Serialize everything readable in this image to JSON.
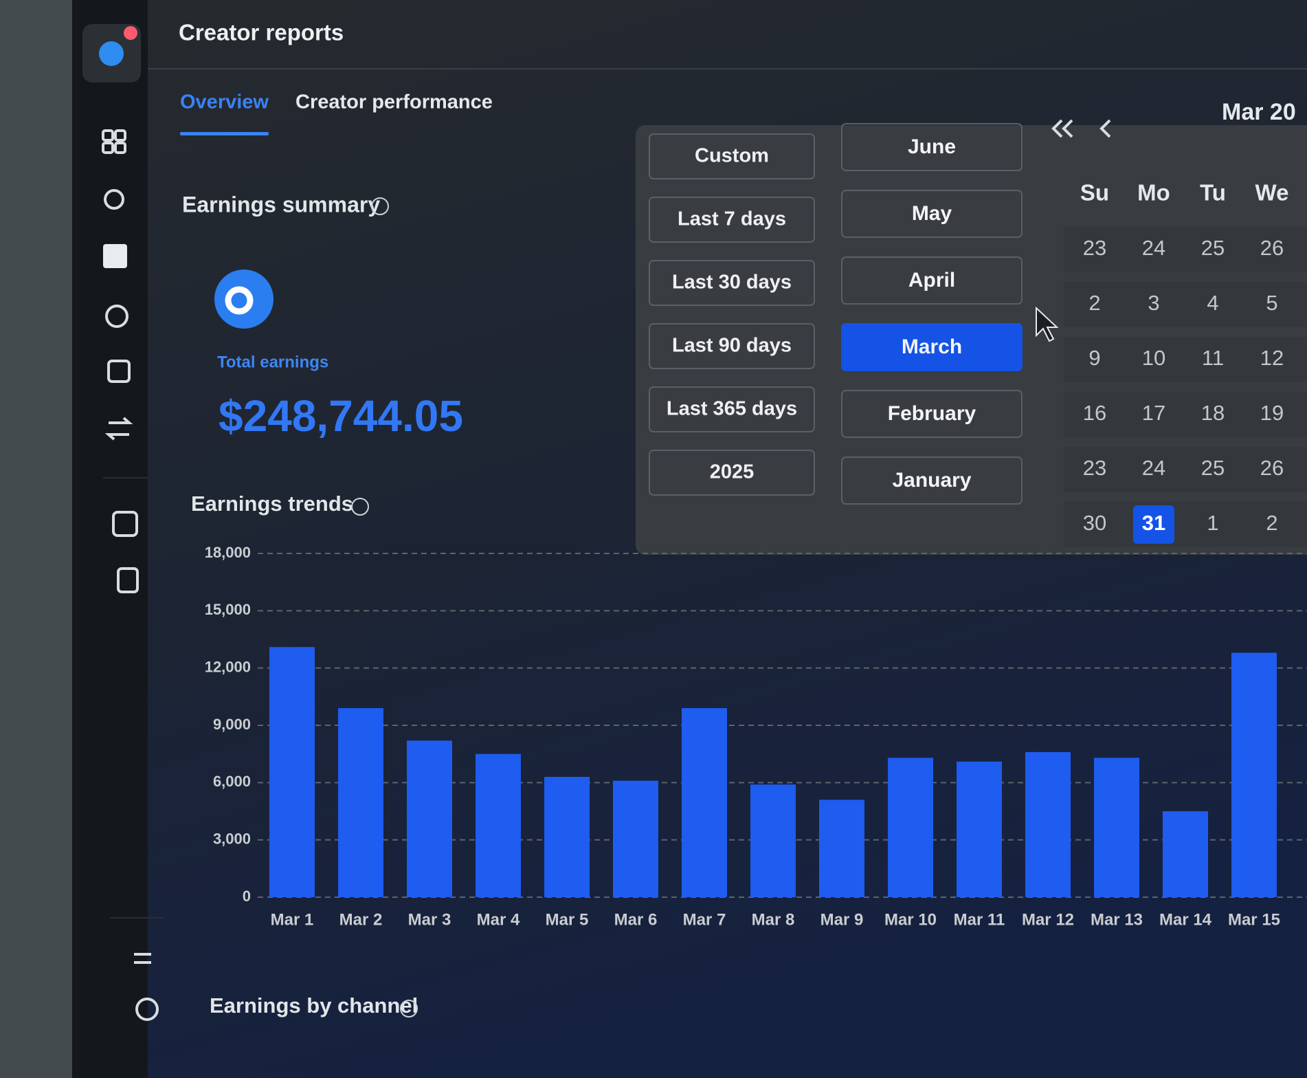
{
  "header": {
    "title": "Creator reports"
  },
  "tabs": [
    "Overview",
    "Creator performance"
  ],
  "active_tab": 0,
  "summary": {
    "title": "Earnings summary",
    "label": "Total earnings",
    "value": "$248,744.05"
  },
  "date_picker": {
    "presets": [
      "Custom",
      "Last 7 days",
      "Last 30 days",
      "Last 90 days",
      "Last 365 days",
      "2025"
    ],
    "months": [
      "June",
      "May",
      "April",
      "March",
      "February",
      "January"
    ],
    "selected_month": 3,
    "calendar": {
      "title": "Mar 20",
      "weekdays": [
        "Su",
        "Mo",
        "Tu",
        "We"
      ],
      "weeks": [
        [
          23,
          24,
          25,
          26
        ],
        [
          2,
          3,
          4,
          5
        ],
        [
          9,
          10,
          11,
          12
        ],
        [
          16,
          17,
          18,
          19
        ],
        [
          23,
          24,
          25,
          26
        ],
        [
          30,
          31,
          1,
          2
        ]
      ],
      "selected": [
        5,
        1
      ]
    }
  },
  "chart_data": {
    "type": "bar",
    "title": "Earnings trends",
    "categories": [
      "Mar 1",
      "Mar 2",
      "Mar 3",
      "Mar 4",
      "Mar 5",
      "Mar 6",
      "Mar 7",
      "Mar 8",
      "Mar 9",
      "Mar 10",
      "Mar 11",
      "Mar 12",
      "Mar 13",
      "Mar 14",
      "Mar 15"
    ],
    "values": [
      13100,
      9900,
      8200,
      7500,
      6300,
      6100,
      9900,
      5900,
      5100,
      7300,
      7100,
      7600,
      7300,
      4500,
      12800
    ],
    "color": "#1f5cf0",
    "ylim": [
      0,
      18000
    ],
    "yticks": [
      0,
      {
        "value": 3000,
        "label": "3,000"
      },
      {
        "value": 6000,
        "label": "6,000"
      },
      {
        "value": 9000,
        "label": "9,000"
      },
      {
        "value": 12000,
        "label": "12,000"
      },
      {
        "value": 15000,
        "label": "15,000"
      },
      {
        "value": 18000,
        "label": "18,000"
      }
    ],
    "grid": true
  },
  "channel_section": {
    "title": "Earnings by channel"
  }
}
